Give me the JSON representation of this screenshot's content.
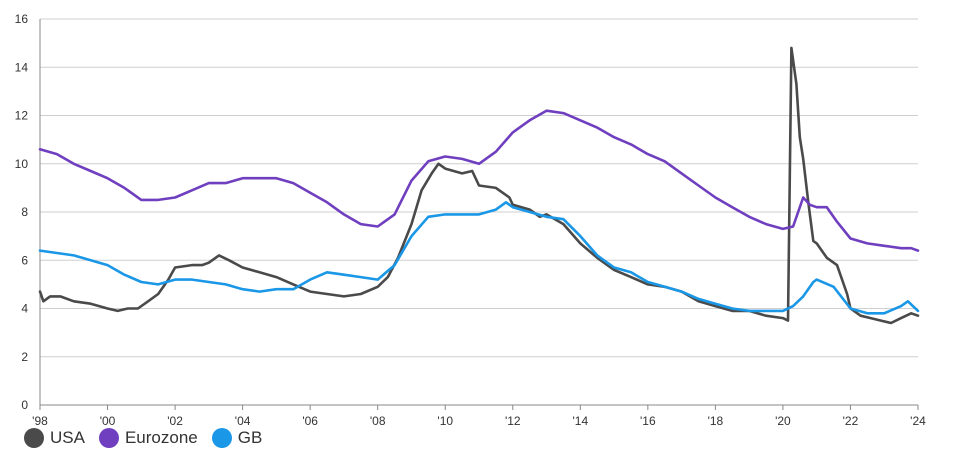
{
  "chart_data": {
    "type": "line",
    "title": "",
    "xlabel": "",
    "ylabel": "",
    "xlim": [
      1998,
      2024
    ],
    "ylim": [
      0,
      16
    ],
    "yticks": [
      0,
      2,
      4,
      6,
      8,
      10,
      12,
      14,
      16
    ],
    "ytick_labels": [
      "0",
      "2",
      "4",
      "6",
      "8",
      "10",
      "12",
      "14",
      "16"
    ],
    "xticks": [
      1998,
      2000,
      2002,
      2004,
      2006,
      2008,
      2010,
      2012,
      2014,
      2016,
      2018,
      2020,
      2022,
      2024
    ],
    "xtick_labels": [
      "'98",
      "'00",
      "'02",
      "'04",
      "'06",
      "'08",
      "'10",
      "'12",
      "'14",
      "'16",
      "'18",
      "'20",
      "'22",
      "'24"
    ],
    "grid": "horizontal",
    "legend_position": "bottom-left",
    "series": [
      {
        "name": "USA",
        "color": "#4a4a4a",
        "points": [
          [
            1998.0,
            4.7
          ],
          [
            1998.1,
            4.3
          ],
          [
            1998.3,
            4.5
          ],
          [
            1998.6,
            4.5
          ],
          [
            1999.0,
            4.3
          ],
          [
            1999.5,
            4.2
          ],
          [
            2000.0,
            4.0
          ],
          [
            2000.3,
            3.9
          ],
          [
            2000.6,
            4.0
          ],
          [
            2000.9,
            4.0
          ],
          [
            2001.2,
            4.3
          ],
          [
            2001.5,
            4.6
          ],
          [
            2001.8,
            5.2
          ],
          [
            2002.0,
            5.7
          ],
          [
            2002.5,
            5.8
          ],
          [
            2002.8,
            5.8
          ],
          [
            2003.0,
            5.9
          ],
          [
            2003.3,
            6.2
          ],
          [
            2003.6,
            6.0
          ],
          [
            2004.0,
            5.7
          ],
          [
            2004.5,
            5.5
          ],
          [
            2005.0,
            5.3
          ],
          [
            2005.5,
            5.0
          ],
          [
            2006.0,
            4.7
          ],
          [
            2006.5,
            4.6
          ],
          [
            2007.0,
            4.5
          ],
          [
            2007.5,
            4.6
          ],
          [
            2008.0,
            4.9
          ],
          [
            2008.3,
            5.3
          ],
          [
            2008.6,
            6.1
          ],
          [
            2009.0,
            7.5
          ],
          [
            2009.3,
            8.9
          ],
          [
            2009.6,
            9.6
          ],
          [
            2009.8,
            10.0
          ],
          [
            2010.0,
            9.8
          ],
          [
            2010.5,
            9.6
          ],
          [
            2010.8,
            9.7
          ],
          [
            2011.0,
            9.1
          ],
          [
            2011.5,
            9.0
          ],
          [
            2011.9,
            8.6
          ],
          [
            2012.0,
            8.3
          ],
          [
            2012.5,
            8.1
          ],
          [
            2012.8,
            7.8
          ],
          [
            2013.0,
            7.9
          ],
          [
            2013.5,
            7.5
          ],
          [
            2014.0,
            6.7
          ],
          [
            2014.5,
            6.1
          ],
          [
            2015.0,
            5.6
          ],
          [
            2015.5,
            5.3
          ],
          [
            2016.0,
            5.0
          ],
          [
            2016.5,
            4.9
          ],
          [
            2017.0,
            4.7
          ],
          [
            2017.5,
            4.3
          ],
          [
            2018.0,
            4.1
          ],
          [
            2018.5,
            3.9
          ],
          [
            2019.0,
            3.9
          ],
          [
            2019.5,
            3.7
          ],
          [
            2020.0,
            3.6
          ],
          [
            2020.15,
            3.5
          ],
          [
            2020.25,
            14.8
          ],
          [
            2020.4,
            13.3
          ],
          [
            2020.5,
            11.1
          ],
          [
            2020.6,
            10.2
          ],
          [
            2020.75,
            8.4
          ],
          [
            2020.9,
            6.8
          ],
          [
            2021.0,
            6.7
          ],
          [
            2021.3,
            6.1
          ],
          [
            2021.6,
            5.8
          ],
          [
            2021.9,
            4.6
          ],
          [
            2022.0,
            4.0
          ],
          [
            2022.3,
            3.7
          ],
          [
            2022.6,
            3.6
          ],
          [
            2022.9,
            3.5
          ],
          [
            2023.2,
            3.4
          ],
          [
            2023.5,
            3.6
          ],
          [
            2023.8,
            3.8
          ],
          [
            2024.0,
            3.7
          ]
        ]
      },
      {
        "name": "Eurozone",
        "color": "#6f3fbf",
        "points": [
          [
            1998.0,
            10.6
          ],
          [
            1998.5,
            10.4
          ],
          [
            1999.0,
            10.0
          ],
          [
            1999.5,
            9.7
          ],
          [
            2000.0,
            9.4
          ],
          [
            2000.5,
            9.0
          ],
          [
            2001.0,
            8.5
          ],
          [
            2001.5,
            8.5
          ],
          [
            2002.0,
            8.6
          ],
          [
            2002.5,
            8.9
          ],
          [
            2003.0,
            9.2
          ],
          [
            2003.5,
            9.2
          ],
          [
            2004.0,
            9.4
          ],
          [
            2004.5,
            9.4
          ],
          [
            2005.0,
            9.4
          ],
          [
            2005.5,
            9.2
          ],
          [
            2006.0,
            8.8
          ],
          [
            2006.5,
            8.4
          ],
          [
            2007.0,
            7.9
          ],
          [
            2007.5,
            7.5
          ],
          [
            2008.0,
            7.4
          ],
          [
            2008.5,
            7.9
          ],
          [
            2009.0,
            9.3
          ],
          [
            2009.5,
            10.1
          ],
          [
            2010.0,
            10.3
          ],
          [
            2010.5,
            10.2
          ],
          [
            2011.0,
            10.0
          ],
          [
            2011.5,
            10.5
          ],
          [
            2012.0,
            11.3
          ],
          [
            2012.5,
            11.8
          ],
          [
            2013.0,
            12.2
          ],
          [
            2013.5,
            12.1
          ],
          [
            2014.0,
            11.8
          ],
          [
            2014.5,
            11.5
          ],
          [
            2015.0,
            11.1
          ],
          [
            2015.5,
            10.8
          ],
          [
            2016.0,
            10.4
          ],
          [
            2016.5,
            10.1
          ],
          [
            2017.0,
            9.6
          ],
          [
            2017.5,
            9.1
          ],
          [
            2018.0,
            8.6
          ],
          [
            2018.5,
            8.2
          ],
          [
            2019.0,
            7.8
          ],
          [
            2019.5,
            7.5
          ],
          [
            2020.0,
            7.3
          ],
          [
            2020.3,
            7.4
          ],
          [
            2020.6,
            8.6
          ],
          [
            2020.8,
            8.3
          ],
          [
            2021.0,
            8.2
          ],
          [
            2021.3,
            8.2
          ],
          [
            2021.6,
            7.6
          ],
          [
            2022.0,
            6.9
          ],
          [
            2022.5,
            6.7
          ],
          [
            2023.0,
            6.6
          ],
          [
            2023.5,
            6.5
          ],
          [
            2023.8,
            6.5
          ],
          [
            2024.0,
            6.4
          ]
        ]
      },
      {
        "name": "GB",
        "color": "#1a97e6",
        "points": [
          [
            1998.0,
            6.4
          ],
          [
            1998.5,
            6.3
          ],
          [
            1999.0,
            6.2
          ],
          [
            1999.5,
            6.0
          ],
          [
            2000.0,
            5.8
          ],
          [
            2000.5,
            5.4
          ],
          [
            2001.0,
            5.1
          ],
          [
            2001.5,
            5.0
          ],
          [
            2002.0,
            5.2
          ],
          [
            2002.5,
            5.2
          ],
          [
            2003.0,
            5.1
          ],
          [
            2003.5,
            5.0
          ],
          [
            2004.0,
            4.8
          ],
          [
            2004.5,
            4.7
          ],
          [
            2005.0,
            4.8
          ],
          [
            2005.5,
            4.8
          ],
          [
            2006.0,
            5.2
          ],
          [
            2006.5,
            5.5
          ],
          [
            2007.0,
            5.4
          ],
          [
            2007.5,
            5.3
          ],
          [
            2008.0,
            5.2
          ],
          [
            2008.5,
            5.8
          ],
          [
            2009.0,
            7.0
          ],
          [
            2009.5,
            7.8
          ],
          [
            2010.0,
            7.9
          ],
          [
            2010.5,
            7.9
          ],
          [
            2011.0,
            7.9
          ],
          [
            2011.5,
            8.1
          ],
          [
            2011.8,
            8.4
          ],
          [
            2012.0,
            8.2
          ],
          [
            2012.5,
            8.0
          ],
          [
            2013.0,
            7.8
          ],
          [
            2013.5,
            7.7
          ],
          [
            2014.0,
            7.0
          ],
          [
            2014.5,
            6.2
          ],
          [
            2015.0,
            5.7
          ],
          [
            2015.5,
            5.5
          ],
          [
            2016.0,
            5.1
          ],
          [
            2016.5,
            4.9
          ],
          [
            2017.0,
            4.7
          ],
          [
            2017.5,
            4.4
          ],
          [
            2018.0,
            4.2
          ],
          [
            2018.5,
            4.0
          ],
          [
            2019.0,
            3.9
          ],
          [
            2019.5,
            3.9
          ],
          [
            2020.0,
            3.9
          ],
          [
            2020.3,
            4.1
          ],
          [
            2020.6,
            4.5
          ],
          [
            2020.9,
            5.1
          ],
          [
            2021.0,
            5.2
          ],
          [
            2021.5,
            4.9
          ],
          [
            2022.0,
            4.0
          ],
          [
            2022.5,
            3.8
          ],
          [
            2023.0,
            3.8
          ],
          [
            2023.5,
            4.1
          ],
          [
            2023.7,
            4.3
          ],
          [
            2024.0,
            3.9
          ]
        ]
      }
    ]
  }
}
